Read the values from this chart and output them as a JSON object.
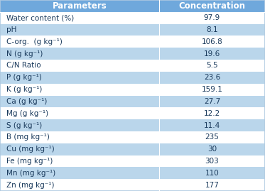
{
  "headers": [
    "Parameters",
    "Concentration"
  ],
  "rows": [
    [
      "Water content (%)",
      "97.9"
    ],
    [
      "pH",
      "8.1"
    ],
    [
      "C-org.  (g kg⁻¹)",
      "106.8"
    ],
    [
      "N (g kg⁻¹)",
      "19.6"
    ],
    [
      "C/N Ratio",
      "5.5"
    ],
    [
      "P (g kg⁻¹)",
      "23.6"
    ],
    [
      "K (g kg⁻¹)",
      "159.1"
    ],
    [
      "Ca (g kg⁻¹)",
      "27.7"
    ],
    [
      "Mg (g kg⁻¹)",
      "12.2"
    ],
    [
      "S (g kg⁻¹)",
      "11.4"
    ],
    [
      "B (mg kg⁻¹)",
      "235"
    ],
    [
      "Cu (mg kg⁻¹)",
      "30"
    ],
    [
      "Fe (mg kg⁻¹)",
      "303"
    ],
    [
      "Mn (mg kg⁻¹)",
      "110"
    ],
    [
      "Zn (mg kg⁻¹)",
      "177"
    ]
  ],
  "row_colors": [
    "#ffffff",
    "#bad6eb",
    "#ffffff",
    "#bad6eb",
    "#ffffff",
    "#bad6eb",
    "#ffffff",
    "#bad6eb",
    "#ffffff",
    "#bad6eb",
    "#ffffff",
    "#bad6eb",
    "#ffffff",
    "#bad6eb",
    "#ffffff"
  ],
  "header_bg": "#6fa8dc",
  "row_bg_light": "#ffffff",
  "row_bg_dark": "#bad6eb",
  "header_text_color": "#ffffff",
  "row_text_color": "#1a3a5c",
  "border_color": "#ffffff",
  "outer_border_color": "#adc8e0",
  "header_fontsize": 8.5,
  "row_fontsize": 7.5,
  "col_split": 0.6,
  "figsize": [
    3.73,
    2.69
  ],
  "dpi": 100
}
